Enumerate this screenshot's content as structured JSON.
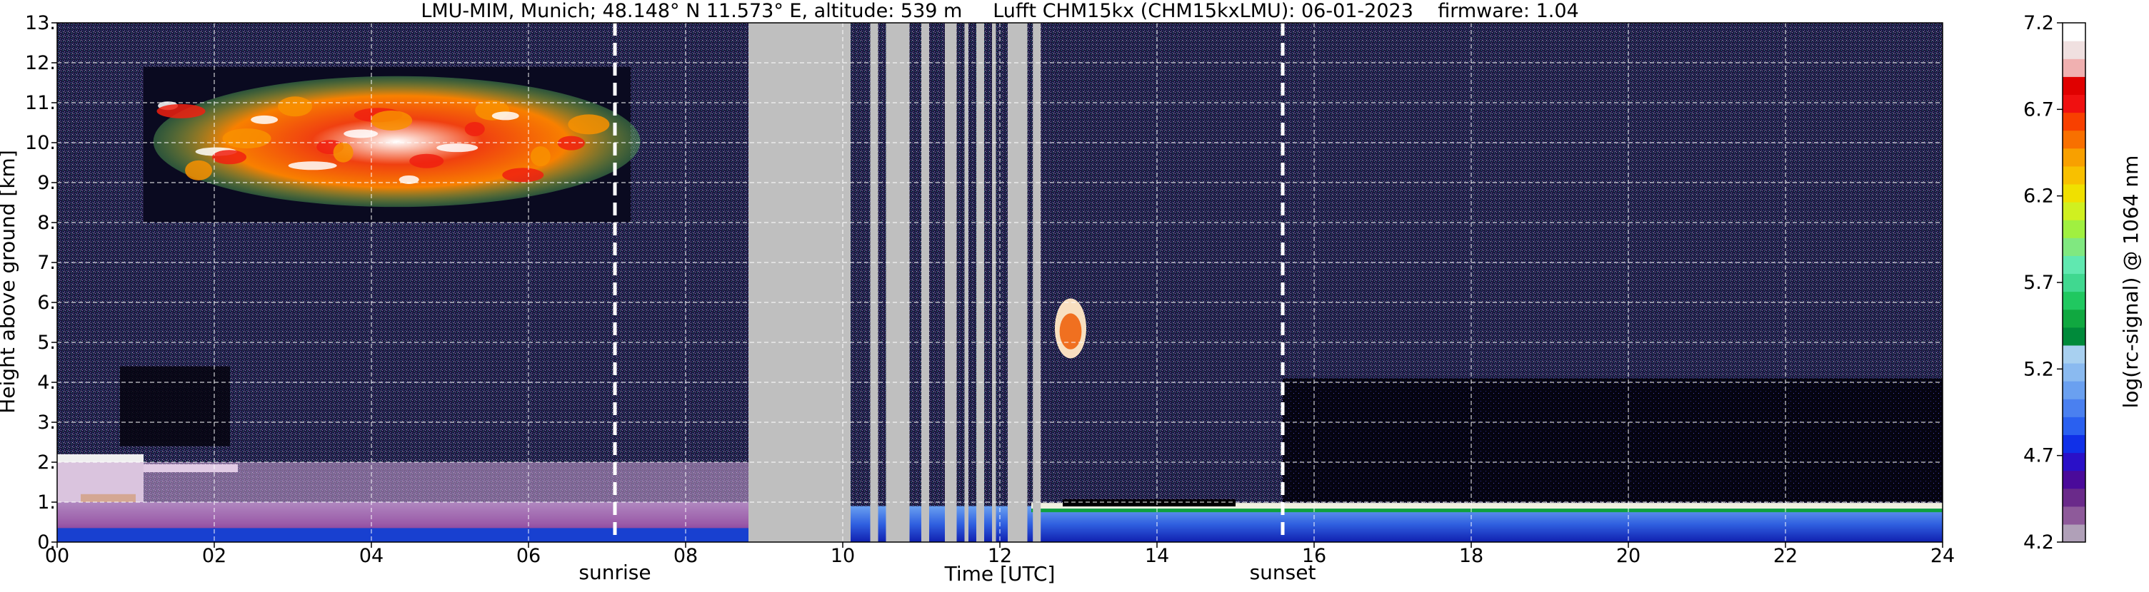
{
  "chart_data": {
    "type": "heatmap",
    "title": "LMU-MIM, Munich; 48.148° N 11.573° E, altitude: 539 m     Lufft CHM15kx (CHM15kxLMU): 06-01-2023    firmware: 1.04",
    "xlabel": "Time [UTC]",
    "ylabel": "Height above ground [km]",
    "xlim": [
      0,
      24
    ],
    "ylim": [
      0,
      13
    ],
    "x_ticks": [
      "00",
      "02",
      "04",
      "06",
      "08",
      "10",
      "12",
      "14",
      "16",
      "18",
      "20",
      "22",
      "24"
    ],
    "y_ticks": [
      "0.",
      "1.",
      "2.",
      "3.",
      "4.",
      "5.",
      "6.",
      "7.",
      "8.",
      "9.",
      "10.",
      "11.",
      "12.",
      "13."
    ],
    "grid": true,
    "annotations": [
      {
        "label": "sunrise",
        "time_utc": 7.1
      },
      {
        "label": "sunset",
        "time_utc": 15.6
      }
    ],
    "missing_data_intervals_utc": [
      [
        8.8,
        10.1
      ],
      [
        10.35,
        10.45
      ],
      [
        10.55,
        10.85
      ],
      [
        11.0,
        11.1
      ],
      [
        11.3,
        11.45
      ],
      [
        11.55,
        11.6
      ],
      [
        11.7,
        11.8
      ],
      [
        11.9,
        11.95
      ],
      [
        12.1,
        12.35
      ],
      [
        12.42,
        12.52
      ]
    ],
    "features": [
      {
        "name": "cirrus cloud",
        "time_utc": [
          1.1,
          7.3
        ],
        "height_km": [
          8.0,
          11.9
        ]
      },
      {
        "name": "low cloud",
        "time_utc": [
          0.0,
          2.3
        ],
        "height_km": [
          0.2,
          2.2
        ]
      },
      {
        "name": "boundary layer",
        "time_utc": [
          0.0,
          24.0
        ],
        "height_km": [
          0.0,
          1.0
        ]
      },
      {
        "name": "cloud patch",
        "time_utc": [
          12.7,
          13.1
        ],
        "height_km": [
          4.6,
          6.1
        ]
      }
    ],
    "colorbar": {
      "label": "log(rc-signal) @ 1064 nm",
      "ticks": [
        "4.2",
        "4.7",
        "5.2",
        "5.7",
        "6.2",
        "6.7",
        "7.2"
      ],
      "range": [
        4.2,
        7.2
      ],
      "colors": [
        "#b0a0b8",
        "#8e5a9a",
        "#6a2a8a",
        "#4a0a9a",
        "#2a10c8",
        "#1030e8",
        "#2a60f0",
        "#4a80f0",
        "#6aa0f0",
        "#8abaf0",
        "#a8d0f0",
        "#008a3a",
        "#10a840",
        "#20c860",
        "#40d890",
        "#60e8b0",
        "#80e880",
        "#a0f040",
        "#d0f020",
        "#f0e000",
        "#f8c000",
        "#f8a000",
        "#f87000",
        "#f84000",
        "#f01010",
        "#e00000",
        "#f0b0b0",
        "#f0e0e0",
        "#ffffff"
      ]
    }
  }
}
